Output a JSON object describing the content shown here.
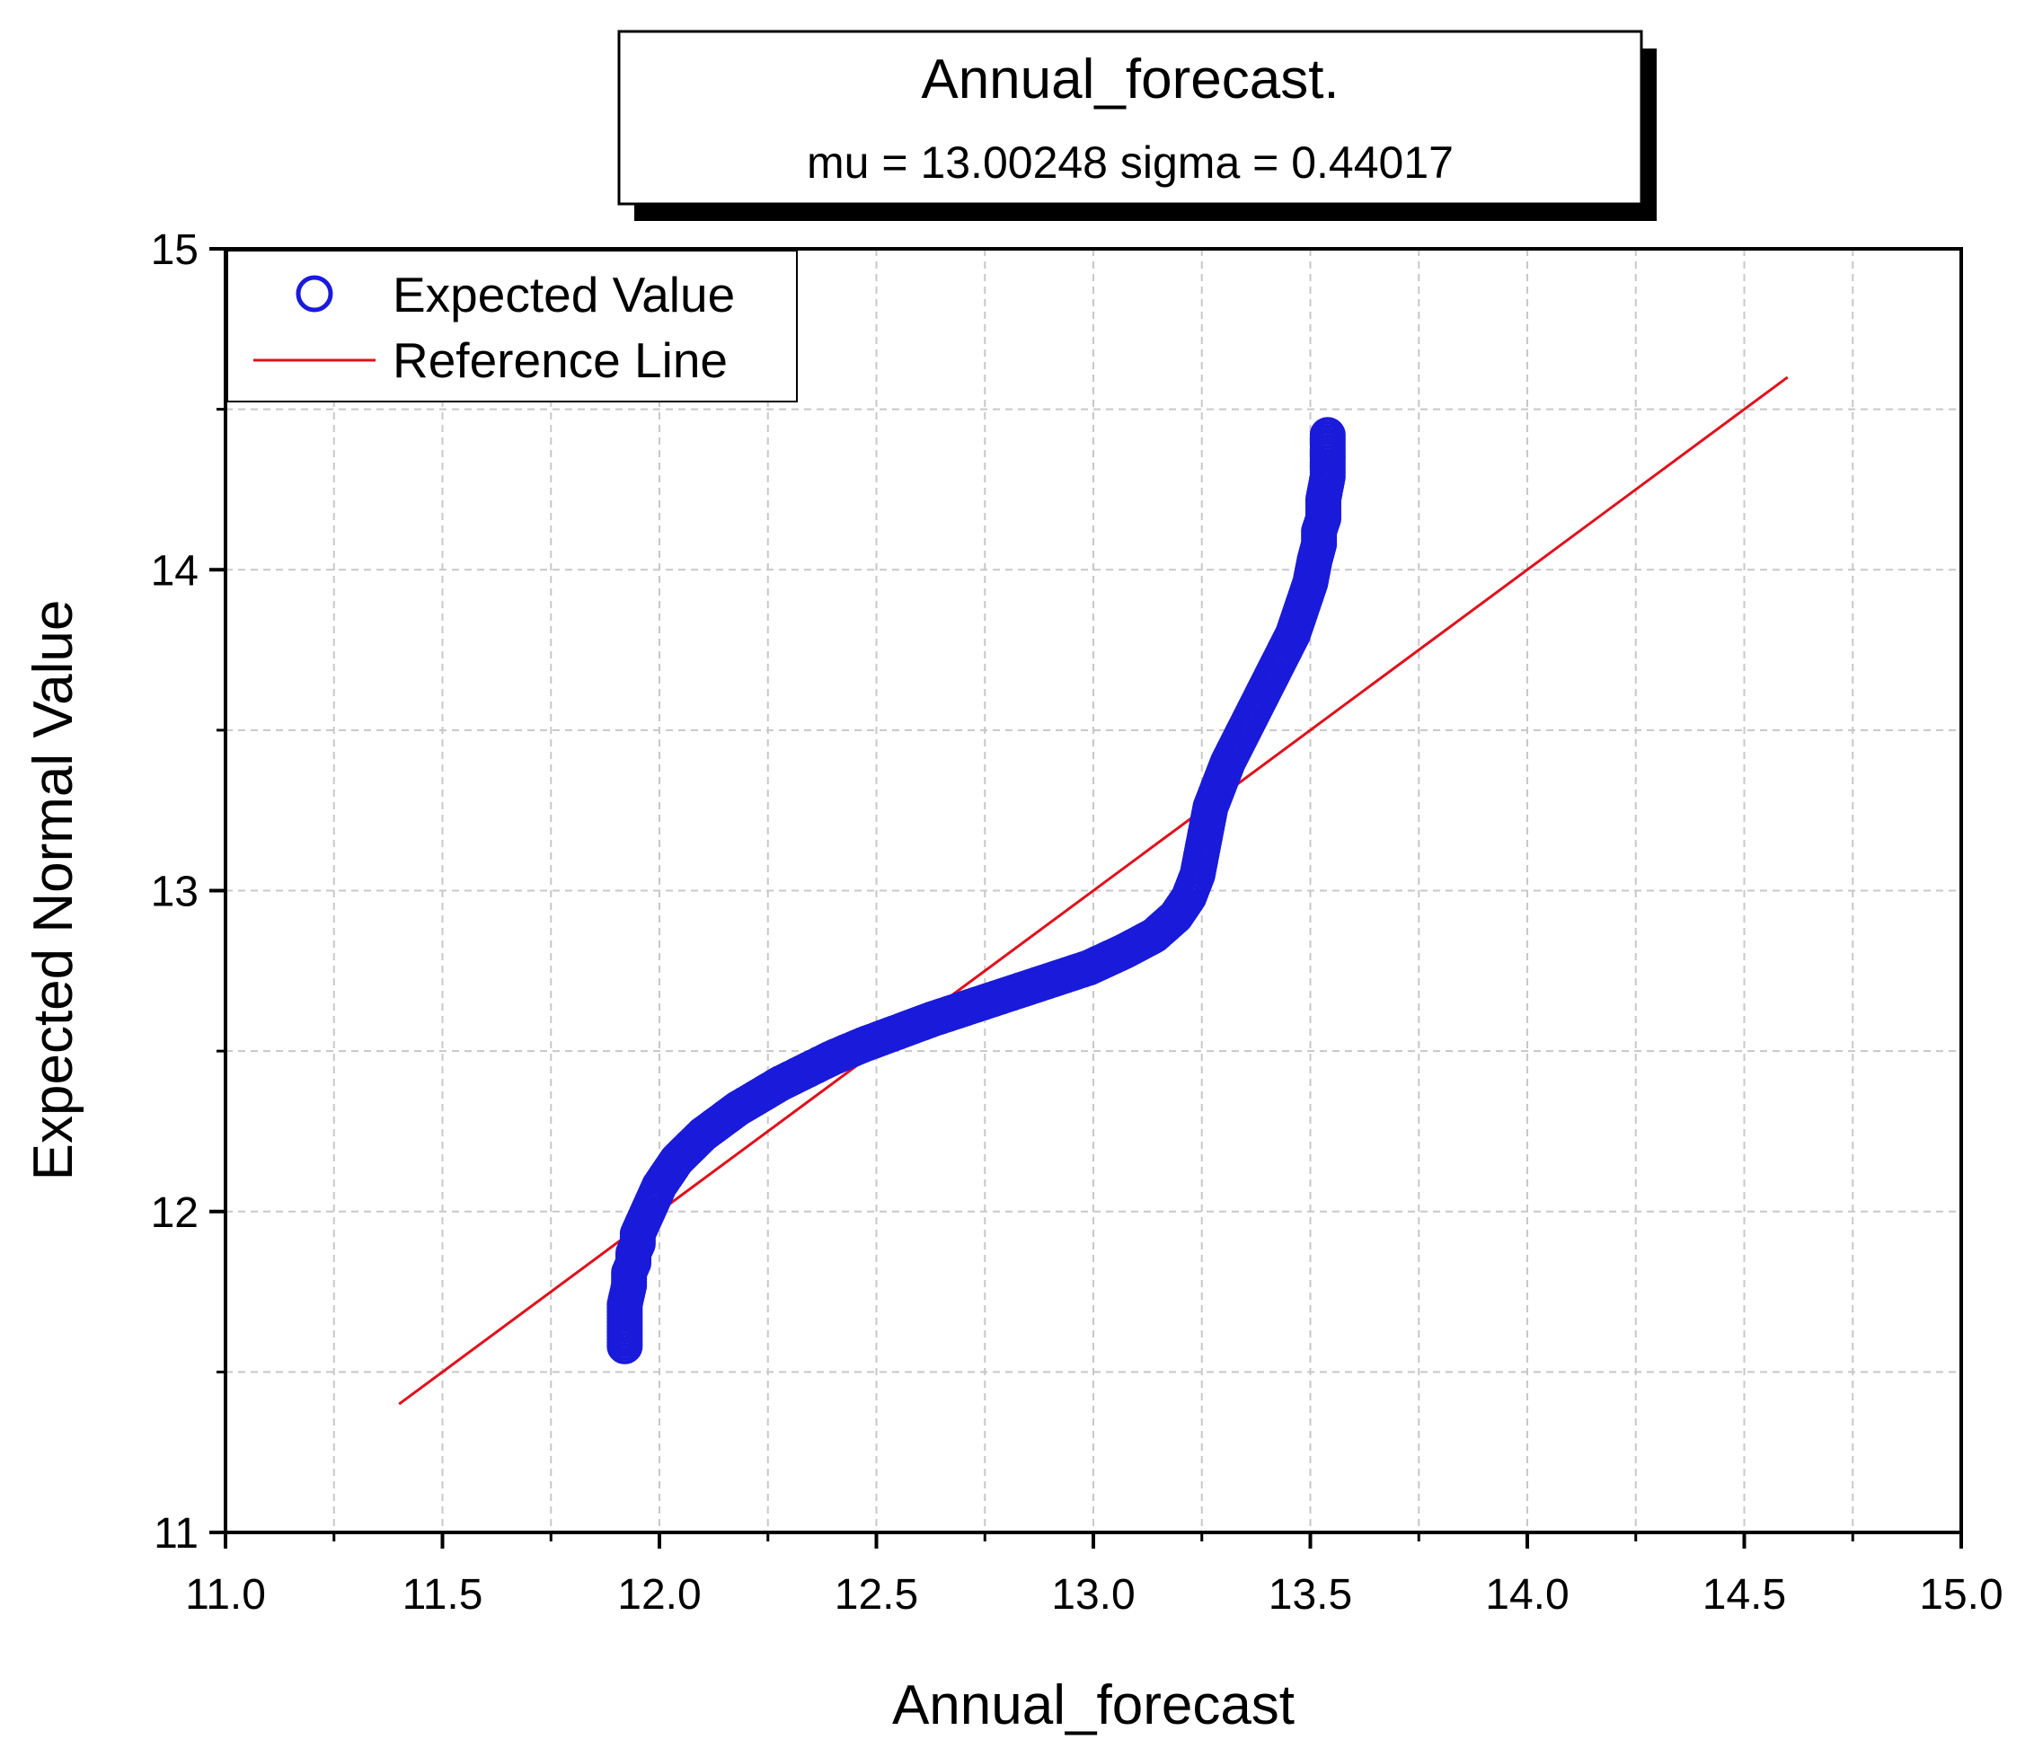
{
  "chart_data": {
    "type": "scatter",
    "title": "Annual_forecast.",
    "subtitle": "mu = 13.00248  sigma = 0.44017",
    "xlabel": "Annual_forecast",
    "ylabel": "Expected Normal Value",
    "xlim": [
      11.0,
      15.0
    ],
    "ylim": [
      11,
      15
    ],
    "x_ticks": [
      "11.0",
      "11.5",
      "12.0",
      "12.5",
      "13.0",
      "13.5",
      "14.0",
      "14.5",
      "15.0"
    ],
    "y_ticks": [
      "11",
      "12",
      "13",
      "14",
      "15"
    ],
    "grid": true,
    "legend_position": "top-left",
    "colors": {
      "expected": "#1a1adb",
      "reference": "#e0101c",
      "grid": "#c8c8c8"
    },
    "series": [
      {
        "name": "Expected Value",
        "style": "hollow-circle",
        "points": [
          [
            11.92,
            11.58
          ],
          [
            11.92,
            11.71
          ],
          [
            11.93,
            11.77
          ],
          [
            11.93,
            11.81
          ],
          [
            11.94,
            11.84
          ],
          [
            11.94,
            11.87
          ],
          [
            11.95,
            11.9
          ],
          [
            11.95,
            11.93
          ],
          [
            11.96,
            11.96
          ],
          [
            11.97,
            11.99
          ],
          [
            11.98,
            12.02
          ],
          [
            11.99,
            12.05
          ],
          [
            12.0,
            12.08
          ],
          [
            12.02,
            12.12
          ],
          [
            12.04,
            12.16
          ],
          [
            12.07,
            12.2
          ],
          [
            12.1,
            12.24
          ],
          [
            12.14,
            12.28
          ],
          [
            12.18,
            12.32
          ],
          [
            12.23,
            12.36
          ],
          [
            12.28,
            12.4
          ],
          [
            12.34,
            12.44
          ],
          [
            12.4,
            12.48
          ],
          [
            12.47,
            12.52
          ],
          [
            12.55,
            12.56
          ],
          [
            12.63,
            12.6
          ],
          [
            12.72,
            12.64
          ],
          [
            12.81,
            12.68
          ],
          [
            12.9,
            12.72
          ],
          [
            12.99,
            12.76
          ],
          [
            13.07,
            12.81
          ],
          [
            13.14,
            12.86
          ],
          [
            13.19,
            12.92
          ],
          [
            13.22,
            12.98
          ],
          [
            13.24,
            13.05
          ],
          [
            13.25,
            13.12
          ],
          [
            13.26,
            13.19
          ],
          [
            13.27,
            13.26
          ],
          [
            13.29,
            13.33
          ],
          [
            13.31,
            13.4
          ],
          [
            13.34,
            13.48
          ],
          [
            13.37,
            13.56
          ],
          [
            13.4,
            13.64
          ],
          [
            13.43,
            13.72
          ],
          [
            13.46,
            13.8
          ],
          [
            13.48,
            13.88
          ],
          [
            13.5,
            13.96
          ],
          [
            13.51,
            14.03
          ],
          [
            13.52,
            14.08
          ],
          [
            13.52,
            14.12
          ],
          [
            13.53,
            14.16
          ],
          [
            13.53,
            14.19
          ],
          [
            13.53,
            14.22
          ],
          [
            13.54,
            14.29
          ],
          [
            13.54,
            14.42
          ]
        ]
      },
      {
        "name": "Reference Line",
        "style": "line",
        "points": [
          [
            11.4,
            11.4
          ],
          [
            14.6,
            14.6
          ]
        ]
      }
    ]
  }
}
